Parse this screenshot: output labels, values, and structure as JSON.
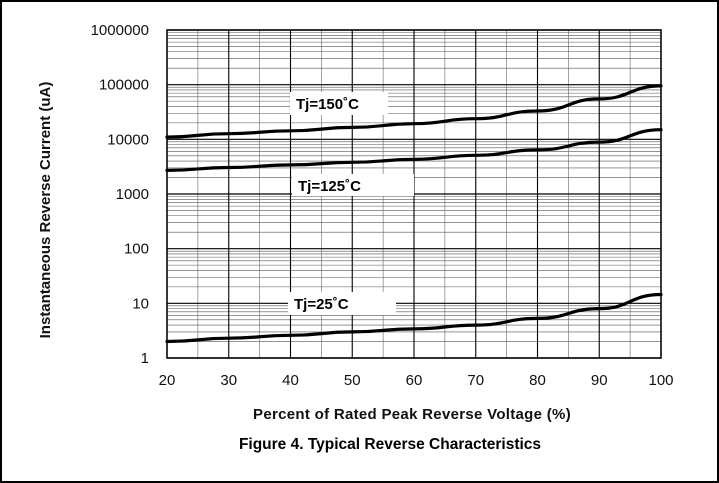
{
  "chart_data": {
    "type": "line",
    "title": "Figure 4. Typical Reverse Characteristics",
    "xlabel": "Percent of Rated Peak Reverse Voltage (%)",
    "ylabel": "Instantaneous Reverse Current (uA)",
    "xlim": [
      20,
      100
    ],
    "ylim": [
      1,
      1000000
    ],
    "yscale": "log",
    "grid": true,
    "x_ticks": [
      "20",
      "30",
      "40",
      "50",
      "60",
      "70",
      "80",
      "90",
      "100"
    ],
    "y_ticks": [
      "1",
      "10",
      "100",
      "1000",
      "10000",
      "100000",
      "1000000"
    ],
    "series": [
      {
        "name": "Tj=150°C",
        "label": "Tj=150˚C",
        "x": [
          20,
          30,
          40,
          50,
          60,
          70,
          80,
          90,
          100
        ],
        "y": [
          11000,
          12700,
          14300,
          16500,
          19300,
          23800,
          33000,
          55000,
          95000
        ]
      },
      {
        "name": "Tj=125°C",
        "label": "Tj=125˚C",
        "x": [
          20,
          30,
          40,
          50,
          60,
          70,
          80,
          90,
          100
        ],
        "y": [
          2700,
          3050,
          3400,
          3800,
          4300,
          5100,
          6400,
          8900,
          15000
        ]
      },
      {
        "name": "Tj=25°C",
        "label": "Tj=25˚C",
        "x": [
          20,
          30,
          40,
          50,
          60,
          70,
          80,
          90,
          100
        ],
        "y": [
          2.0,
          2.3,
          2.6,
          3.0,
          3.4,
          4.0,
          5.3,
          8.0,
          14.5
        ]
      }
    ]
  }
}
